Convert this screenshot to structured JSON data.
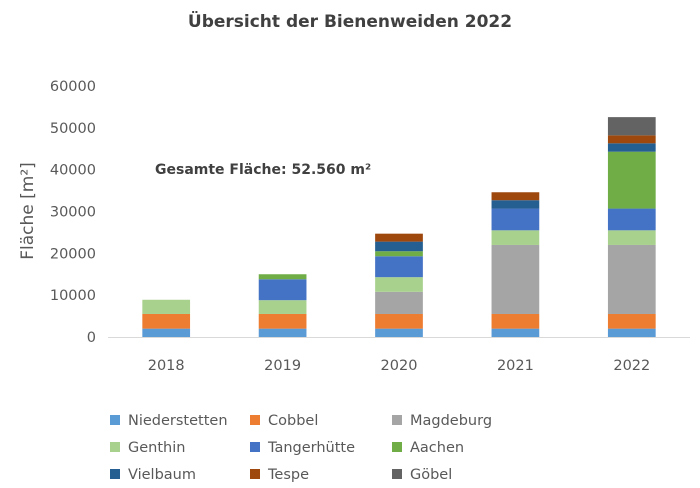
{
  "chart_data": {
    "type": "bar",
    "stacked": true,
    "title": "Übersicht der Bienenweiden 2022",
    "xlabel": "",
    "ylabel": "Fläche [m²]",
    "annotation": "Gesamte Fläche: 52.560 m²",
    "categories": [
      "2018",
      "2019",
      "2020",
      "2021",
      "2022"
    ],
    "ylim": [
      0,
      60000
    ],
    "yticks": [
      0,
      10000,
      20000,
      30000,
      40000,
      50000,
      60000
    ],
    "ytick_labels": [
      "0",
      "10000",
      "20000",
      "30000",
      "40000",
      "50000",
      "60000"
    ],
    "grid": false,
    "legend": "bottom",
    "series": [
      {
        "name": "Niederstetten",
        "color": "#5B9BD5",
        "values": [
          2000,
          2000,
          2000,
          2000,
          2000
        ]
      },
      {
        "name": "Cobbel",
        "color": "#ED7D31",
        "values": [
          3500,
          3500,
          3500,
          3500,
          3500
        ]
      },
      {
        "name": "Magdeburg",
        "color": "#A5A5A5",
        "values": [
          0,
          0,
          5300,
          16500,
          16500
        ]
      },
      {
        "name": "Genthin",
        "color": "#A9D18E",
        "values": [
          3400,
          3300,
          3500,
          3500,
          3500
        ]
      },
      {
        "name": "Tangerhütte",
        "color": "#4472C4",
        "values": [
          0,
          5000,
          5000,
          5200,
          5200
        ]
      },
      {
        "name": "Aachen",
        "color": "#70AD47",
        "values": [
          0,
          1200,
          1200,
          0,
          13600
        ]
      },
      {
        "name": "Vielbaum",
        "color": "#255E91",
        "values": [
          0,
          0,
          2300,
          2000,
          2000
        ]
      },
      {
        "name": "Tespe",
        "color": "#9E480E",
        "values": [
          0,
          0,
          1900,
          1900,
          1900
        ]
      },
      {
        "name": "Göbel",
        "color": "#636363",
        "values": [
          0,
          0,
          0,
          0,
          4360
        ]
      }
    ]
  }
}
